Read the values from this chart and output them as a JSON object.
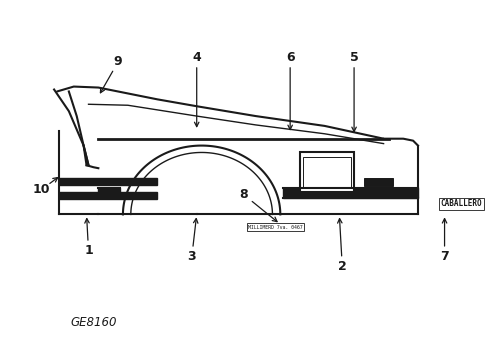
{
  "bg_color": "#ffffff",
  "line_color": "#1a1a1a",
  "diagram_id": "GE8160",
  "figsize": [
    4.9,
    3.6
  ],
  "dpi": 100
}
